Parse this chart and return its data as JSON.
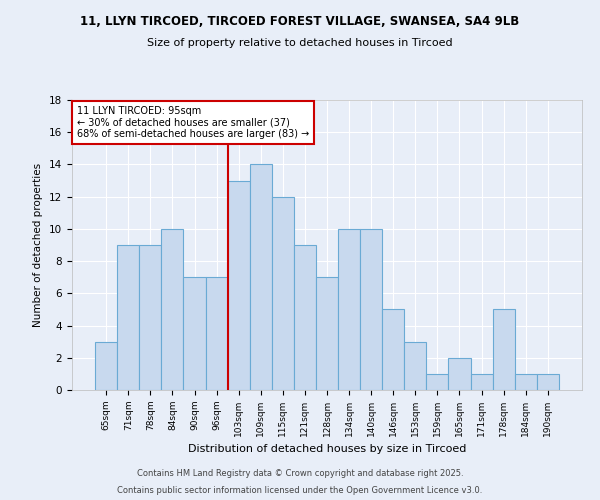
{
  "title1": "11, LLYN TIRCOED, TIRCOED FOREST VILLAGE, SWANSEA, SA4 9LB",
  "title2": "Size of property relative to detached houses in Tircoed",
  "xlabel": "Distribution of detached houses by size in Tircoed",
  "ylabel": "Number of detached properties",
  "categories": [
    "65sqm",
    "71sqm",
    "78sqm",
    "84sqm",
    "90sqm",
    "96sqm",
    "103sqm",
    "109sqm",
    "115sqm",
    "121sqm",
    "128sqm",
    "134sqm",
    "140sqm",
    "146sqm",
    "153sqm",
    "159sqm",
    "165sqm",
    "171sqm",
    "178sqm",
    "184sqm",
    "190sqm"
  ],
  "values": [
    3,
    9,
    9,
    10,
    7,
    7,
    13,
    14,
    12,
    9,
    7,
    10,
    10,
    5,
    3,
    1,
    2,
    1,
    5,
    1,
    1
  ],
  "bar_color": "#c8d9ee",
  "bar_edge_color": "#6aaad4",
  "highlight_index": 5,
  "annotation_title": "11 LLYN TIRCOED: 95sqm",
  "annotation_line1": "← 30% of detached houses are smaller (37)",
  "annotation_line2": "68% of semi-detached houses are larger (83) →",
  "annotation_box_color": "#ffffff",
  "annotation_box_edge": "#cc0000",
  "red_line_color": "#cc0000",
  "ylim": [
    0,
    18
  ],
  "yticks": [
    0,
    2,
    4,
    6,
    8,
    10,
    12,
    14,
    16,
    18
  ],
  "bg_color": "#e8eef8",
  "grid_color": "#ffffff",
  "footer1": "Contains HM Land Registry data © Crown copyright and database right 2025.",
  "footer2": "Contains public sector information licensed under the Open Government Licence v3.0."
}
